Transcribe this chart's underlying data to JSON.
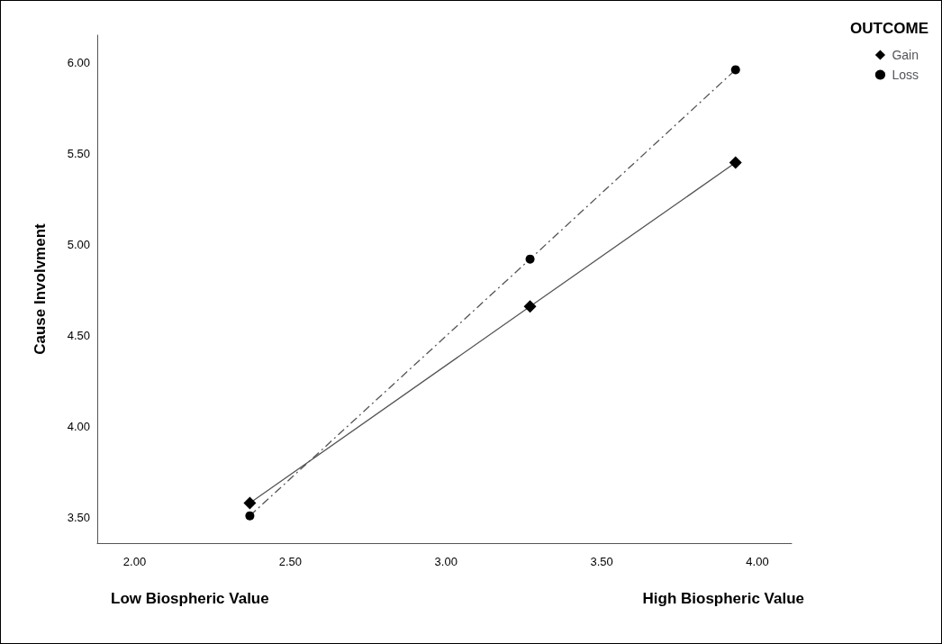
{
  "chart_data": {
    "type": "line",
    "ylabel": "Cause Involvment",
    "legend_title": "OUTCOME",
    "legend": "top right",
    "grid": false,
    "x": [
      2.37,
      3.27,
      3.93
    ],
    "series": [
      {
        "name": "Gain",
        "color": "#000000",
        "marker": "diamond",
        "line_style": "solid",
        "values": [
          3.58,
          4.66,
          5.45
        ]
      },
      {
        "name": "Loss",
        "color": "#000000",
        "marker": "circle",
        "line_style": "dashed",
        "values": [
          3.51,
          4.92,
          5.96
        ]
      }
    ],
    "xlim": [
      1.88,
      4.11
    ],
    "xticks": [
      {
        "value": 2,
        "label": "2.00"
      },
      {
        "value": 2.5,
        "label": "2.50"
      },
      {
        "value": 3,
        "label": "3.00"
      },
      {
        "value": 3.5,
        "label": "3.50"
      },
      {
        "value": 4,
        "label": "4.00"
      }
    ],
    "ylim": [
      3.36,
      6.15
    ],
    "yticks": [
      {
        "value": 3.5,
        "label": "3.50"
      },
      {
        "value": 4,
        "label": "4.00"
      },
      {
        "value": 4.5,
        "label": "4.50"
      },
      {
        "value": 5,
        "label": "5.00"
      },
      {
        "value": 5.5,
        "label": "5.50"
      },
      {
        "value": 6,
        "label": "6.00"
      }
    ],
    "annotations": [
      "Low Biospheric Value",
      "High Biospheric Value"
    ]
  }
}
